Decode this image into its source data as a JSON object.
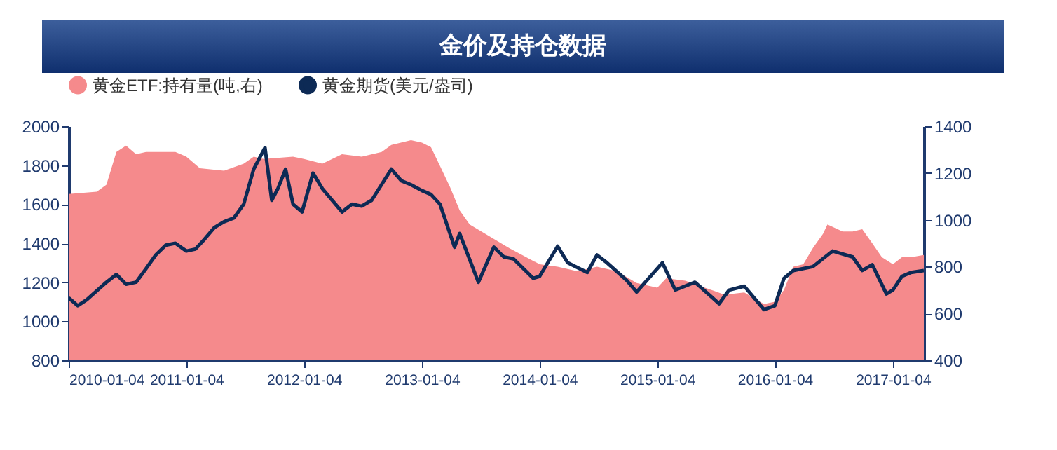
{
  "chart_data": {
    "type": "line",
    "title": "金价及持仓数据",
    "xlim": [
      "2010-01-04",
      "2017-04-10"
    ],
    "xticks": [
      "2010-01-04",
      "2011-01-04",
      "2012-01-04",
      "2013-01-04",
      "2014-01-04",
      "2015-01-04",
      "2016-01-04",
      "2017-01-04"
    ],
    "ylim": [
      800,
      2000
    ],
    "yticks": [
      800,
      1000,
      1200,
      1400,
      1600,
      1800,
      2000
    ],
    "y2lim": [
      400,
      1400
    ],
    "y2ticks": [
      400,
      600,
      800,
      1000,
      1200,
      1400
    ],
    "legend": "top",
    "grid": false,
    "series": [
      {
        "name": "黄金ETF:持有量(吨,右)",
        "type": "area",
        "axis": "y2",
        "color": "#f58a8c",
        "x": [
          "2010-01-04",
          "2010-04-01",
          "2010-05-01",
          "2010-06-01",
          "2010-07-01",
          "2010-08-01",
          "2010-09-01",
          "2010-12-01",
          "2011-01-04",
          "2011-02-15",
          "2011-05-01",
          "2011-07-01",
          "2011-08-01",
          "2011-09-01",
          "2011-12-01",
          "2012-01-04",
          "2012-03-01",
          "2012-05-01",
          "2012-07-01",
          "2012-09-01",
          "2012-10-01",
          "2012-12-01",
          "2013-01-04",
          "2013-02-01",
          "2013-03-01",
          "2013-04-01",
          "2013-05-01",
          "2013-06-01",
          "2013-08-01",
          "2013-10-01",
          "2014-01-04",
          "2014-03-01",
          "2014-05-01",
          "2014-07-01",
          "2014-09-01",
          "2014-11-01",
          "2015-01-04",
          "2015-02-01",
          "2015-04-01",
          "2015-06-01",
          "2015-08-01",
          "2015-10-01",
          "2015-12-01",
          "2016-01-04",
          "2016-02-01",
          "2016-03-01",
          "2016-04-01",
          "2016-05-01",
          "2016-06-01",
          "2016-06-15",
          "2016-08-01",
          "2016-09-01",
          "2016-10-01",
          "2016-11-01",
          "2016-12-01",
          "2017-01-04",
          "2017-02-01",
          "2017-03-01",
          "2017-04-10"
        ],
        "values": [
          1110,
          1120,
          1150,
          1290,
          1317,
          1280,
          1290,
          1290,
          1270,
          1220,
          1210,
          1240,
          1270,
          1260,
          1270,
          1260,
          1240,
          1280,
          1270,
          1290,
          1320,
          1340,
          1330,
          1310,
          1230,
          1140,
          1040,
          980,
          930,
          880,
          810,
          800,
          780,
          800,
          780,
          730,
          710,
          750,
          740,
          710,
          680,
          690,
          640,
          650,
          700,
          800,
          810,
          880,
          940,
          980,
          950,
          950,
          960,
          900,
          840,
          810,
          840,
          840,
          850
        ]
      },
      {
        "name": "黄金期货(美元/盎司)",
        "color": "#0d2a55",
        "x": [
          "2010-01-04",
          "2010-02-01",
          "2010-03-01",
          "2010-05-01",
          "2010-06-01",
          "2010-07-01",
          "2010-08-01",
          "2010-09-01",
          "2010-10-01",
          "2010-11-01",
          "2010-12-01",
          "2011-01-04",
          "2011-02-01",
          "2011-03-01",
          "2011-04-01",
          "2011-05-01",
          "2011-06-01",
          "2011-07-01",
          "2011-08-01",
          "2011-09-05",
          "2011-09-26",
          "2011-10-15",
          "2011-11-08",
          "2011-12-01",
          "2011-12-29",
          "2012-02-01",
          "2012-03-01",
          "2012-05-01",
          "2012-06-01",
          "2012-07-01",
          "2012-08-01",
          "2012-10-01",
          "2012-11-01",
          "2012-12-01",
          "2013-01-04",
          "2013-02-01",
          "2013-03-01",
          "2013-04-15",
          "2013-05-01",
          "2013-06-28",
          "2013-08-15",
          "2013-09-15",
          "2013-10-15",
          "2013-12-15",
          "2014-01-04",
          "2014-03-01",
          "2014-04-01",
          "2014-06-01",
          "2014-07-01",
          "2014-08-01",
          "2014-10-01",
          "2014-11-01",
          "2015-01-20",
          "2015-03-01",
          "2015-05-01",
          "2015-07-15",
          "2015-08-15",
          "2015-10-01",
          "2015-12-01",
          "2016-01-04",
          "2016-02-01",
          "2016-03-01",
          "2016-05-01",
          "2016-07-01",
          "2016-09-01",
          "2016-10-01",
          "2016-11-01",
          "2016-12-15",
          "2017-01-04",
          "2017-02-01",
          "2017-03-01",
          "2017-04-10"
        ],
        "values": [
          1120,
          1080,
          1110,
          1200,
          1240,
          1190,
          1200,
          1270,
          1340,
          1390,
          1400,
          1360,
          1370,
          1420,
          1480,
          1510,
          1530,
          1600,
          1780,
          1890,
          1620,
          1680,
          1780,
          1600,
          1560,
          1760,
          1680,
          1560,
          1600,
          1590,
          1620,
          1780,
          1720,
          1700,
          1670,
          1650,
          1600,
          1380,
          1450,
          1200,
          1380,
          1330,
          1320,
          1220,
          1230,
          1385,
          1300,
          1250,
          1340,
          1300,
          1210,
          1150,
          1300,
          1160,
          1200,
          1090,
          1160,
          1180,
          1060,
          1080,
          1220,
          1260,
          1280,
          1360,
          1330,
          1260,
          1290,
          1140,
          1160,
          1230,
          1250,
          1260
        ]
      }
    ]
  }
}
